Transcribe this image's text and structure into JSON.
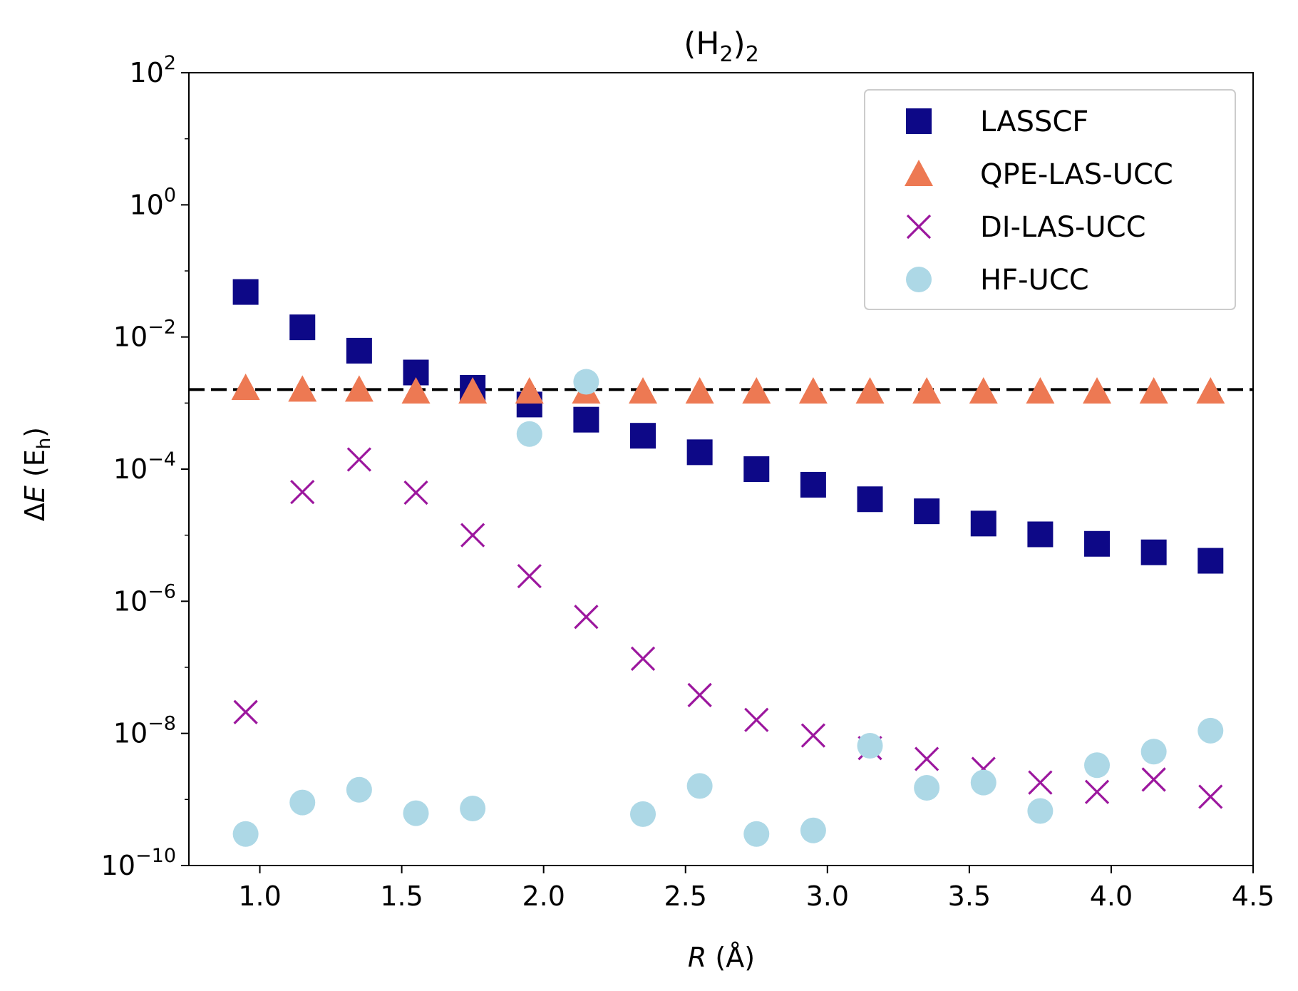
{
  "chart_data": {
    "type": "scatter",
    "title": {
      "base": "(H",
      "sub1": "2",
      "mid": ")",
      "sub2": "2"
    },
    "xlabel": {
      "var": "R",
      "unit": " (Å)"
    },
    "ylabel": {
      "pre": "Δ",
      "var": "E",
      "unit_open": " (E",
      "unit_sub": "h",
      "unit_close": ")"
    },
    "xlim": [
      0.75,
      4.5
    ],
    "ylim_log10": [
      -10,
      2
    ],
    "yscale": "log",
    "x_ticks": [
      {
        "value": 1.0,
        "label": "1.0"
      },
      {
        "value": 1.5,
        "label": "1.5"
      },
      {
        "value": 2.0,
        "label": "2.0"
      },
      {
        "value": 2.5,
        "label": "2.5"
      },
      {
        "value": 3.0,
        "label": "3.0"
      },
      {
        "value": 3.5,
        "label": "3.5"
      },
      {
        "value": 4.0,
        "label": "4.0"
      },
      {
        "value": 4.5,
        "label": "4.5"
      }
    ],
    "y_ticks": [
      {
        "exp": 2,
        "base": "10",
        "sup": "2"
      },
      {
        "exp": 0,
        "base": "10",
        "sup": "0"
      },
      {
        "exp": -2,
        "base": "10",
        "sup": "−2"
      },
      {
        "exp": -4,
        "base": "10",
        "sup": "−4"
      },
      {
        "exp": -6,
        "base": "10",
        "sup": "−6"
      },
      {
        "exp": -8,
        "base": "10",
        "sup": "−8"
      },
      {
        "exp": -10,
        "base": "10",
        "sup": "−10"
      }
    ],
    "reference_line": {
      "y": 0.0016,
      "style": "dashed",
      "color": "#000000"
    },
    "legend_position": "top-right",
    "x": [
      0.95,
      1.15,
      1.35,
      1.55,
      1.75,
      1.95,
      2.15,
      2.35,
      2.55,
      2.75,
      2.95,
      3.15,
      3.35,
      3.55,
      3.75,
      3.95,
      4.15,
      4.35
    ],
    "series": [
      {
        "name": "LASSCF",
        "marker": "square",
        "color": "#0d0887",
        "values": [
          0.048,
          0.014,
          0.0062,
          0.0029,
          0.0017,
          0.00095,
          0.00056,
          0.00032,
          0.00018,
          0.0001,
          5.8e-05,
          3.5e-05,
          2.3e-05,
          1.5e-05,
          1.03e-05,
          7.4e-06,
          5.5e-06,
          4.1e-06
        ]
      },
      {
        "name": "QPE-LAS-UCC",
        "marker": "triangle",
        "color": "#ed7953",
        "values": [
          0.0017,
          0.0016,
          0.0016,
          0.0015,
          0.0015,
          0.0015,
          0.0015,
          0.0015,
          0.0015,
          0.0015,
          0.0015,
          0.0015,
          0.0015,
          0.0015,
          0.0015,
          0.0015,
          0.0015,
          0.0015
        ]
      },
      {
        "name": "DI-LAS-UCC",
        "marker": "x",
        "color": "#9c179e",
        "values": [
          2.1e-08,
          4.5e-05,
          0.00014,
          4.4e-05,
          1e-05,
          2.4e-06,
          5.8e-07,
          1.35e-07,
          3.8e-08,
          1.6e-08,
          9.3e-09,
          6e-09,
          4.1e-09,
          2.9e-09,
          1.8e-09,
          1.3e-09,
          2e-09,
          1.1e-09
        ]
      },
      {
        "name": "HF-UCC",
        "marker": "circle",
        "color": "#add8e6",
        "values": [
          3e-10,
          9e-10,
          1.4e-09,
          6.2e-10,
          7.3e-10,
          0.00034,
          0.0021,
          6e-10,
          1.6e-09,
          3e-10,
          3.4e-10,
          6.5e-09,
          1.5e-09,
          1.8e-09,
          6.7e-10,
          3.3e-09,
          5.3e-09,
          1.1e-08
        ]
      }
    ]
  }
}
